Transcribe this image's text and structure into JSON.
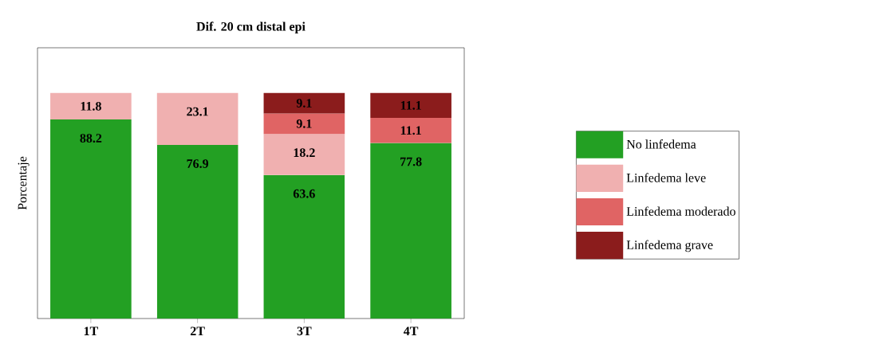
{
  "chart_data": {
    "type": "bar",
    "title": "Dif. 20 cm distal epi",
    "ylabel": "Porcentaje",
    "categories": [
      "1T",
      "2T",
      "3T",
      "4T"
    ],
    "stacked": true,
    "ylim": [
      0,
      120
    ],
    "tick_labels": "x",
    "data_labels": true,
    "legend": "right",
    "series": [
      {
        "name": "No linfedema",
        "color": "#23a023",
        "values": [
          88.2,
          76.9,
          63.6,
          77.8
        ]
      },
      {
        "name": "Linfedema leve",
        "color": "#f0b0b0",
        "values": [
          11.8,
          23.1,
          18.2,
          null
        ]
      },
      {
        "name": "Linfedema moderado",
        "color": "#e06464",
        "values": [
          null,
          null,
          9.1,
          11.1
        ]
      },
      {
        "name": "Linfedema grave",
        "color": "#8b1c1c",
        "values": [
          null,
          null,
          9.1,
          11.1
        ]
      }
    ]
  }
}
